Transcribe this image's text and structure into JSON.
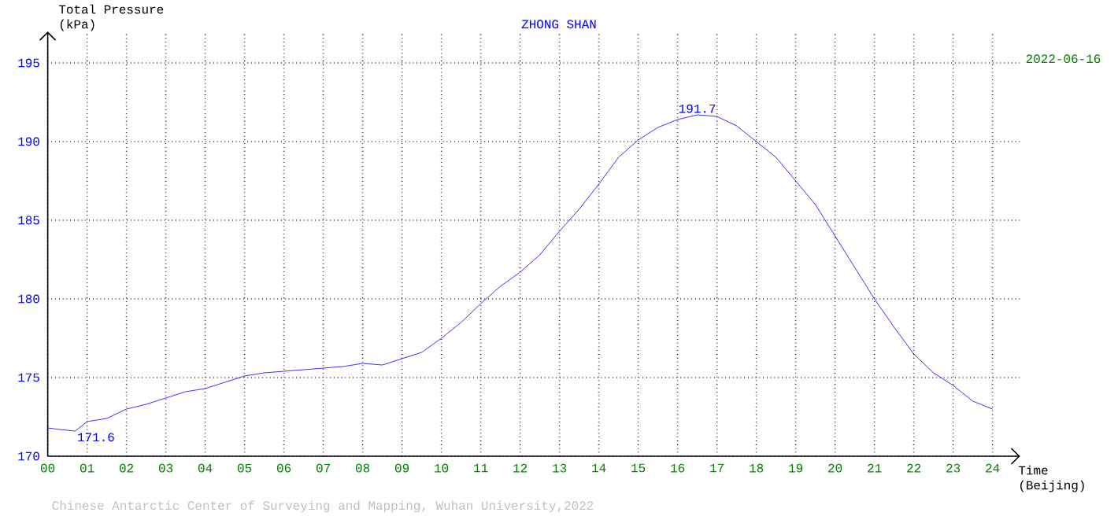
{
  "chart_data": {
    "type": "line",
    "title": "ZHONG SHAN",
    "subtitle": "2022-06-16",
    "ylabel": "Total Pressure (kPa)",
    "xlabel": "Time (Beijing)",
    "x": [
      0,
      0.3,
      0.7,
      1,
      1.5,
      2,
      2.5,
      3,
      3.5,
      4,
      4.5,
      5,
      5.5,
      6,
      6.5,
      7,
      7.5,
      8,
      8.5,
      9,
      9.5,
      10,
      10.5,
      11,
      11.5,
      12,
      12.5,
      13,
      13.5,
      14,
      14.5,
      15,
      15.5,
      16,
      16.5,
      17,
      17.5,
      18,
      18.5,
      19,
      19.5,
      20,
      20.5,
      21,
      21.5,
      22,
      22.5,
      23,
      23.5,
      24
    ],
    "series": [
      {
        "color": "#0000ff",
        "values": [
          171.8,
          171.7,
          171.6,
          172.2,
          172.4,
          173.0,
          173.3,
          173.7,
          174.1,
          174.3,
          174.7,
          175.1,
          175.3,
          175.4,
          175.5,
          175.6,
          175.7,
          175.9,
          175.8,
          176.2,
          176.6,
          177.5,
          178.5,
          179.7,
          180.8,
          181.7,
          182.8,
          184.3,
          185.7,
          187.3,
          189.0,
          190.1,
          190.9,
          191.4,
          191.7,
          191.6,
          191.0,
          190.0,
          189.0,
          187.5,
          186.0,
          184.0,
          182.0,
          180.0,
          178.2,
          176.5,
          175.3,
          174.5,
          173.5,
          173.0
        ]
      }
    ],
    "xlim": [
      0,
      24.7
    ],
    "ylim": [
      170,
      197
    ],
    "xticks": [
      {
        "value": 0,
        "label": "00"
      },
      {
        "value": 1,
        "label": "01"
      },
      {
        "value": 2,
        "label": "02"
      },
      {
        "value": 3,
        "label": "03"
      },
      {
        "value": 4,
        "label": "04"
      },
      {
        "value": 5,
        "label": "05"
      },
      {
        "value": 6,
        "label": "06"
      },
      {
        "value": 7,
        "label": "07"
      },
      {
        "value": 8,
        "label": "08"
      },
      {
        "value": 9,
        "label": "09"
      },
      {
        "value": 10,
        "label": "10"
      },
      {
        "value": 11,
        "label": "11"
      },
      {
        "value": 12,
        "label": "12"
      },
      {
        "value": 13,
        "label": "13"
      },
      {
        "value": 14,
        "label": "14"
      },
      {
        "value": 15,
        "label": "15"
      },
      {
        "value": 16,
        "label": "16"
      },
      {
        "value": 17,
        "label": "17"
      },
      {
        "value": 18,
        "label": "18"
      },
      {
        "value": 19,
        "label": "19"
      },
      {
        "value": 20,
        "label": "20"
      },
      {
        "value": 21,
        "label": "21"
      },
      {
        "value": 22,
        "label": "22"
      },
      {
        "value": 23,
        "label": "23"
      },
      {
        "value": 24,
        "label": "24"
      }
    ],
    "yticks": [
      170,
      175,
      180,
      185,
      190,
      195
    ],
    "grid": true,
    "line_style": "solid",
    "annotations": [
      {
        "text": "171.6",
        "x": 0.7,
        "y": 171.6
      },
      {
        "text": "191.7",
        "x": 16.5,
        "y": 191.7
      },
      "Chinese Antarctic Center of Surveying and Mapping, Wuhan University,2022"
    ]
  }
}
